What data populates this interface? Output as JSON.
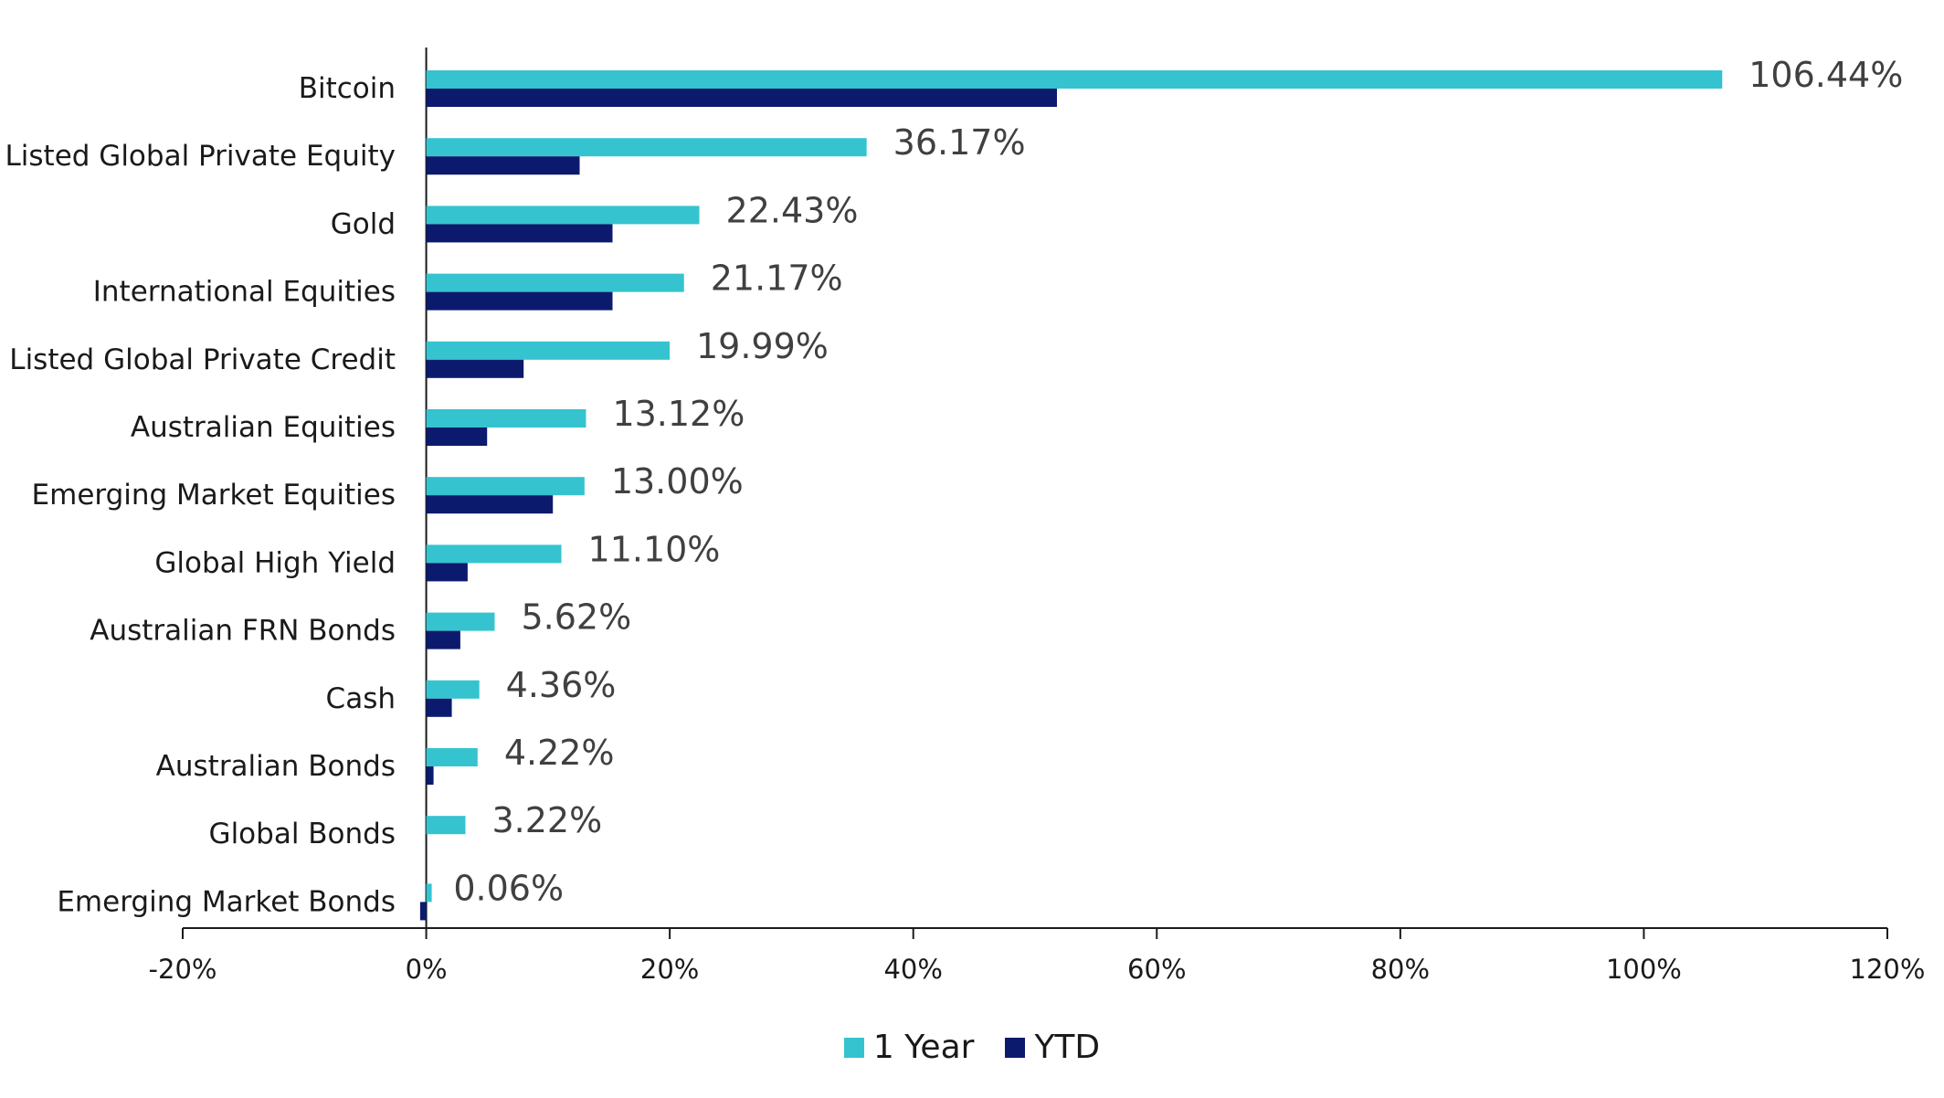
{
  "chart_data": {
    "type": "bar",
    "orientation": "horizontal",
    "categories": [
      "Bitcoin",
      "Listed Global Private Equity",
      "Gold",
      "International Equities",
      "Listed Global Private Credit",
      "Australian Equities",
      "Emerging Market Equities",
      "Global High Yield",
      "Australian FRN Bonds",
      "Cash",
      "Australian Bonds",
      "Global Bonds",
      "Emerging Market Bonds"
    ],
    "series": [
      {
        "name": "1 Year",
        "color": "#35c3d0",
        "values": [
          106.44,
          36.17,
          22.43,
          21.17,
          19.99,
          13.12,
          13.0,
          11.1,
          5.62,
          4.36,
          4.22,
          3.22,
          0.06
        ],
        "labels": [
          "106.44%",
          "36.17%",
          "22.43%",
          "21.17%",
          "19.99%",
          "13.12%",
          "13.00%",
          "11.10%",
          "5.62%",
          "4.36%",
          "4.22%",
          "3.22%",
          "0.06%"
        ]
      },
      {
        "name": "YTD",
        "color": "#0c1a6e",
        "values": [
          51.8,
          12.6,
          15.3,
          15.3,
          8.0,
          5.0,
          10.4,
          3.4,
          2.8,
          2.1,
          0.6,
          0.0,
          -0.5
        ]
      }
    ],
    "xlim": [
      -20,
      120
    ],
    "xticks": [
      -20,
      0,
      20,
      40,
      60,
      80,
      100,
      120
    ],
    "xtick_labels": [
      "-20%",
      "0%",
      "20%",
      "40%",
      "60%",
      "80%",
      "100%",
      "120%"
    ],
    "title": "",
    "xlabel": "",
    "ylabel": "",
    "grid": false,
    "legend_position": "bottom-center"
  }
}
